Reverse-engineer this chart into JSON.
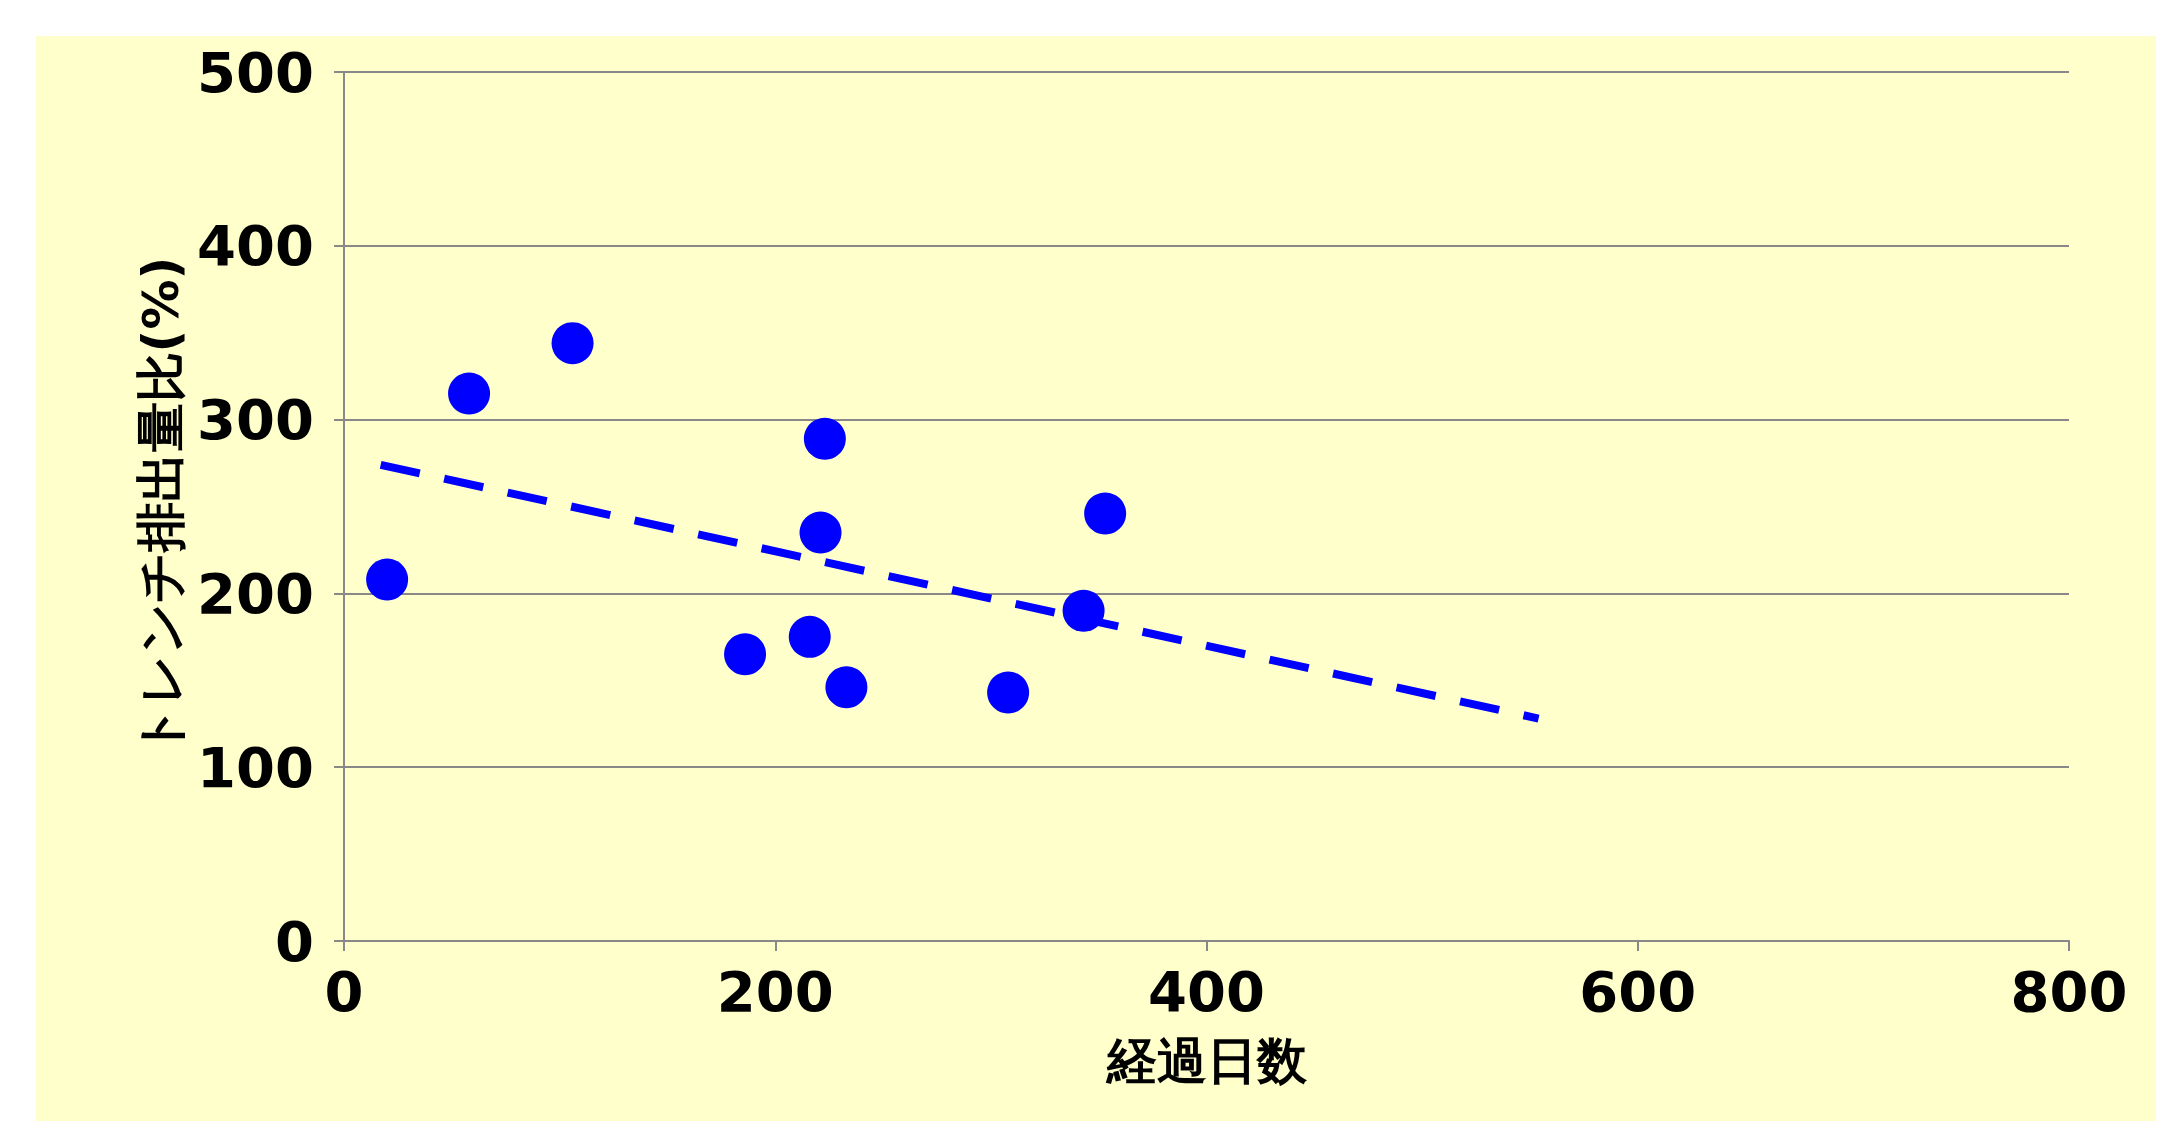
{
  "chart_data": {
    "type": "scatter",
    "xlabel": "経過日数",
    "ylabel": "トレンチ排出量比(%)",
    "xlim": [
      0,
      800
    ],
    "xticks": [
      0,
      200,
      400,
      600,
      800
    ],
    "ylim": [
      0,
      500
    ],
    "yticks": [
      0,
      100,
      200,
      300,
      400,
      500
    ],
    "grid": "y",
    "marker": "circle",
    "series": [
      {
        "color": "#0000ff",
        "x": [
          20,
          58,
          106,
          186,
          216,
          223,
          221,
          233,
          308,
          343,
          353
        ],
        "values": [
          208,
          315,
          344,
          165,
          175,
          289,
          235,
          146,
          143,
          190,
          246
        ]
      },
      {
        "type": "line",
        "color": "#0000ff",
        "marker": "none",
        "line_style": "dashed",
        "x": [
          17,
          554
        ],
        "values": [
          274,
          128
        ]
      }
    ]
  }
}
